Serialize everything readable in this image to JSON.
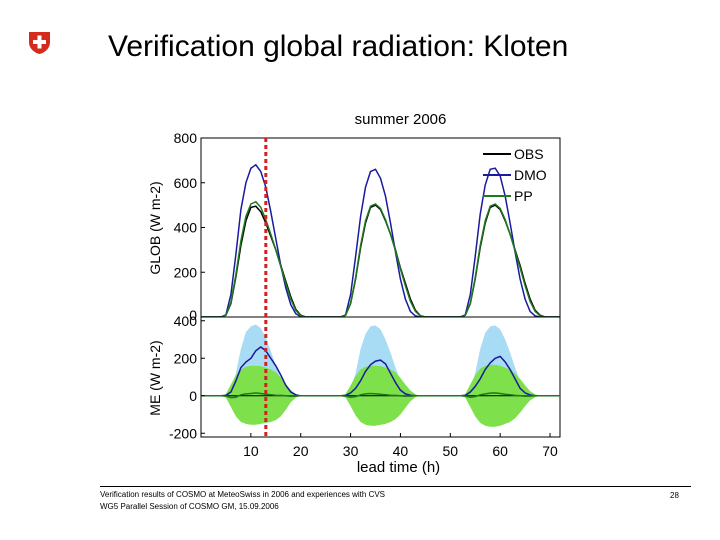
{
  "slide": {
    "title": "Verification global radiation: Kloten",
    "footer_line1": "Verification results of COSMO at MeteoSwiss in 2006 and experiences with CVS",
    "footer_line2": "WG5 Parallel Session of COSMO GM, 15.09.2006",
    "page_number": "28"
  },
  "colors": {
    "obs": "#000000",
    "dmo": "#1a1aa0",
    "pp": "#1e7a1e",
    "dmo_spread": "#a8dcf5",
    "pp_spread": "#7ee04a",
    "marker_line": "#d42020",
    "logo_red": "#d52b1e"
  },
  "chart_data": [
    {
      "type": "line",
      "title": "summer 2006",
      "ylabel": "GLOB (W m-2)",
      "xlim": [
        0,
        72
      ],
      "ylim": [
        0,
        800
      ],
      "yticks": [
        0,
        200,
        400,
        600,
        800
      ],
      "grid": false,
      "legend_placement": "top-right",
      "x": [
        0,
        2,
        4,
        5,
        6,
        7,
        8,
        9,
        10,
        11,
        12,
        13,
        14,
        15,
        16,
        17,
        18,
        19,
        20,
        21,
        22,
        24,
        26,
        28,
        29,
        30,
        31,
        32,
        33,
        34,
        35,
        36,
        37,
        38,
        39,
        40,
        41,
        42,
        43,
        44,
        45,
        46,
        48,
        50,
        52,
        53,
        54,
        55,
        56,
        57,
        58,
        59,
        60,
        61,
        62,
        63,
        64,
        65,
        66,
        67,
        68,
        69,
        70,
        72
      ],
      "series": [
        {
          "name": "OBS",
          "values": [
            0,
            0,
            0,
            8,
            60,
            180,
            320,
            430,
            490,
            495,
            470,
            420,
            360,
            300,
            230,
            160,
            90,
            35,
            8,
            0,
            0,
            0,
            0,
            0,
            8,
            60,
            170,
            310,
            420,
            490,
            500,
            480,
            430,
            370,
            300,
            220,
            150,
            80,
            30,
            6,
            0,
            0,
            0,
            0,
            0,
            8,
            60,
            170,
            310,
            420,
            490,
            500,
            480,
            430,
            370,
            300,
            230,
            150,
            80,
            30,
            8,
            0,
            0,
            0
          ]
        },
        {
          "name": "DMO",
          "values": [
            0,
            0,
            0,
            10,
            100,
            280,
            480,
            600,
            665,
            680,
            650,
            580,
            470,
            350,
            230,
            130,
            55,
            15,
            2,
            0,
            0,
            0,
            0,
            0,
            10,
            100,
            270,
            450,
            580,
            650,
            660,
            620,
            540,
            420,
            290,
            170,
            80,
            25,
            5,
            0,
            0,
            0,
            0,
            0,
            0,
            10,
            100,
            270,
            460,
            590,
            660,
            665,
            630,
            540,
            420,
            290,
            170,
            80,
            25,
            5,
            0,
            0,
            0,
            0
          ]
        },
        {
          "name": "PP",
          "values": [
            0,
            0,
            0,
            8,
            65,
            190,
            340,
            450,
            505,
            515,
            490,
            435,
            370,
            300,
            225,
            150,
            80,
            30,
            6,
            0,
            0,
            0,
            0,
            0,
            8,
            62,
            175,
            320,
            430,
            495,
            505,
            485,
            435,
            370,
            295,
            215,
            140,
            70,
            25,
            5,
            0,
            0,
            0,
            0,
            0,
            8,
            62,
            175,
            320,
            430,
            495,
            505,
            485,
            435,
            370,
            295,
            220,
            140,
            70,
            25,
            6,
            0,
            0,
            0
          ]
        }
      ]
    },
    {
      "type": "area",
      "xlabel": "lead time (h)",
      "ylabel": "ME (W m-2)",
      "xlim": [
        0,
        72
      ],
      "ylim": [
        -220,
        420
      ],
      "xticks": [
        10,
        20,
        30,
        40,
        50,
        60,
        70
      ],
      "yticks": [
        -200,
        0,
        200,
        400
      ],
      "grid": false,
      "x": [
        0,
        2,
        4,
        5,
        6,
        7,
        8,
        9,
        10,
        11,
        12,
        13,
        14,
        15,
        16,
        17,
        18,
        19,
        20,
        21,
        22,
        24,
        26,
        28,
        29,
        30,
        31,
        32,
        33,
        34,
        35,
        36,
        37,
        38,
        39,
        40,
        41,
        42,
        43,
        44,
        45,
        46,
        48,
        50,
        52,
        53,
        54,
        55,
        56,
        57,
        58,
        59,
        60,
        61,
        62,
        63,
        64,
        65,
        66,
        67,
        68,
        69,
        70,
        72
      ],
      "dmo_spread_upper": [
        0,
        0,
        0,
        8,
        40,
        120,
        250,
        340,
        370,
        380,
        360,
        310,
        240,
        160,
        90,
        40,
        15,
        5,
        0,
        0,
        0,
        0,
        0,
        0,
        8,
        40,
        120,
        250,
        330,
        370,
        375,
        355,
        300,
        230,
        150,
        80,
        35,
        10,
        3,
        0,
        0,
        0,
        0,
        0,
        0,
        8,
        40,
        120,
        250,
        335,
        370,
        375,
        355,
        300,
        230,
        150,
        80,
        35,
        10,
        3,
        0,
        0,
        0,
        0
      ],
      "dmo_spread_lower": [
        0,
        0,
        0,
        -5,
        -30,
        -80,
        -110,
        -120,
        -110,
        -90,
        -70,
        -60,
        -70,
        -90,
        -80,
        -50,
        -20,
        -5,
        0,
        0,
        0,
        0,
        0,
        0,
        -5,
        -30,
        -80,
        -110,
        -120,
        -110,
        -90,
        -70,
        -65,
        -75,
        -90,
        -70,
        -40,
        -15,
        -5,
        0,
        0,
        0,
        0,
        0,
        0,
        -5,
        -30,
        -80,
        -110,
        -120,
        -110,
        -90,
        -75,
        -70,
        -80,
        -90,
        -65,
        -35,
        -10,
        -3,
        0,
        0,
        0,
        0
      ],
      "pp_spread_upper": [
        0,
        0,
        0,
        10,
        60,
        110,
        140,
        155,
        160,
        160,
        158,
        150,
        140,
        125,
        100,
        65,
        30,
        10,
        0,
        0,
        0,
        0,
        0,
        0,
        10,
        55,
        105,
        140,
        155,
        160,
        160,
        158,
        150,
        140,
        125,
        95,
        60,
        28,
        8,
        0,
        0,
        0,
        0,
        0,
        0,
        10,
        60,
        110,
        145,
        160,
        165,
        165,
        160,
        150,
        140,
        120,
        90,
        55,
        25,
        8,
        0,
        0,
        0,
        0
      ],
      "pp_spread_lower": [
        0,
        0,
        0,
        -10,
        -60,
        -110,
        -140,
        -150,
        -155,
        -155,
        -150,
        -145,
        -140,
        -130,
        -110,
        -75,
        -35,
        -10,
        0,
        0,
        0,
        0,
        0,
        0,
        -10,
        -55,
        -105,
        -140,
        -155,
        -160,
        -160,
        -155,
        -150,
        -140,
        -125,
        -100,
        -65,
        -30,
        -8,
        0,
        0,
        0,
        0,
        0,
        0,
        -10,
        -60,
        -110,
        -145,
        -160,
        -165,
        -165,
        -160,
        -150,
        -140,
        -120,
        -90,
        -55,
        -25,
        -8,
        0,
        0,
        0,
        0
      ],
      "series": [
        {
          "name": "DMO",
          "values": [
            0,
            0,
            0,
            2,
            20,
            80,
            150,
            180,
            200,
            240,
            260,
            240,
            200,
            160,
            110,
            55,
            20,
            5,
            0,
            0,
            0,
            0,
            0,
            0,
            2,
            15,
            40,
            80,
            130,
            165,
            185,
            190,
            170,
            120,
            70,
            30,
            10,
            3,
            0,
            0,
            0,
            0,
            0,
            0,
            0,
            2,
            20,
            50,
            90,
            140,
            175,
            200,
            210,
            180,
            140,
            90,
            40,
            15,
            4,
            0,
            0,
            0,
            0,
            0
          ]
        },
        {
          "name": "PP",
          "values": [
            0,
            0,
            0,
            -2,
            -10,
            -8,
            5,
            10,
            12,
            15,
            12,
            8,
            5,
            3,
            2,
            0,
            -3,
            -2,
            0,
            0,
            0,
            0,
            0,
            0,
            -2,
            -8,
            -5,
            5,
            10,
            12,
            10,
            8,
            5,
            3,
            2,
            0,
            -3,
            -2,
            0,
            0,
            0,
            0,
            0,
            0,
            0,
            -2,
            -8,
            -5,
            5,
            10,
            14,
            15,
            12,
            8,
            5,
            2,
            0,
            -3,
            -2,
            0,
            0,
            0,
            0,
            0
          ]
        }
      ]
    }
  ],
  "marker": {
    "x": 13
  }
}
